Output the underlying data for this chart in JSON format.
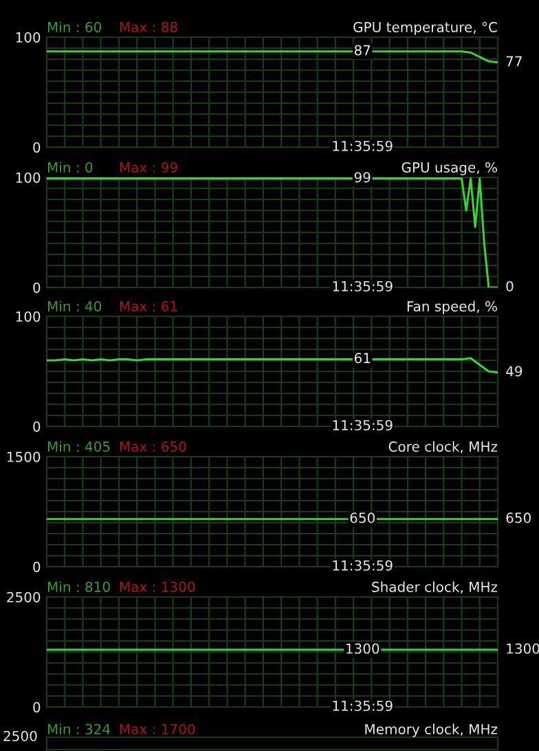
{
  "chart_data": [
    {
      "type": "line",
      "title": "GPU temperature, °C",
      "categories": [
        null,
        null,
        null,
        null,
        null,
        null,
        null,
        null,
        null,
        null,
        null,
        null,
        null,
        null,
        null,
        null,
        null,
        null,
        null,
        null,
        null,
        null,
        null,
        null,
        null,
        null,
        null,
        null,
        null,
        null,
        null,
        null,
        null,
        null,
        null,
        null,
        null,
        null,
        null,
        null,
        null,
        null,
        null,
        null,
        null,
        null,
        null,
        null,
        null,
        null,
        null
      ],
      "series": [
        {
          "color": "#3ad23a",
          "values": [
            87,
            87,
            87,
            87,
            87,
            87,
            87,
            87,
            87,
            87,
            87,
            87,
            87,
            87,
            87,
            87,
            87,
            87,
            87,
            87,
            87,
            87,
            87,
            87,
            87,
            87,
            87,
            87,
            87,
            87,
            87,
            87,
            87,
            87,
            87,
            87,
            87,
            87,
            87,
            87,
            87,
            87,
            87,
            87,
            87,
            87,
            87,
            86,
            82,
            78,
            77
          ]
        }
      ],
      "ylim": [
        0,
        100
      ],
      "yticks": [
        0,
        100
      ],
      "grid": true,
      "marker": "none",
      "line_style": "solid",
      "annotations": [
        "Min : 60",
        "Max : 88",
        "11:35:59",
        "77",
        {
          "text": "87",
          "y": 87
        }
      ]
    },
    {
      "type": "line",
      "title": "GPU usage, %",
      "categories": [
        null,
        null,
        null,
        null,
        null,
        null,
        null,
        null,
        null,
        null,
        null,
        null,
        null,
        null,
        null,
        null,
        null,
        null,
        null,
        null,
        null,
        null,
        null,
        null,
        null,
        null,
        null,
        null,
        null,
        null,
        null,
        null,
        null,
        null,
        null,
        null,
        null,
        null,
        null,
        null,
        null,
        null,
        null,
        null,
        null,
        null,
        null,
        null,
        null,
        null,
        null,
        null,
        null,
        null,
        null,
        null,
        null,
        null,
        null,
        null,
        null,
        null,
        null,
        null,
        null,
        null,
        null,
        null,
        null,
        null,
        null,
        null,
        null,
        null,
        null,
        null,
        null,
        null,
        null,
        null,
        null,
        null,
        null,
        null,
        null,
        null,
        null,
        null,
        null,
        null,
        null,
        null,
        null,
        null,
        null,
        null,
        null,
        null,
        null,
        null,
        null
      ],
      "series": [
        {
          "color": "#3ad23a",
          "values": [
            99,
            99,
            99,
            99,
            99,
            99,
            99,
            99,
            99,
            99,
            99,
            99,
            99,
            99,
            99,
            99,
            99,
            99,
            99,
            99,
            99,
            99,
            99,
            99,
            99,
            99,
            99,
            99,
            99,
            99,
            99,
            99,
            99,
            99,
            99,
            99,
            99,
            99,
            99,
            99,
            99,
            99,
            99,
            99,
            99,
            99,
            99,
            99,
            99,
            99,
            99,
            99,
            99,
            99,
            99,
            99,
            99,
            99,
            99,
            99,
            99,
            99,
            99,
            99,
            99,
            99,
            99,
            99,
            99,
            99,
            99,
            99,
            99,
            99,
            99,
            99,
            99,
            99,
            99,
            99,
            99,
            99,
            99,
            99,
            99,
            99,
            99,
            99,
            99,
            99,
            99,
            99,
            99,
            70,
            99,
            55,
            99,
            40,
            0,
            0,
            0
          ]
        }
      ],
      "ylim": [
        0,
        100
      ],
      "yticks": [
        0,
        100
      ],
      "grid": true,
      "marker": "none",
      "line_style": "solid",
      "annotations": [
        "Min : 0",
        "Max : 99",
        "11:35:59",
        "0",
        {
          "text": "99",
          "y": 99
        }
      ]
    },
    {
      "type": "line",
      "title": "Fan speed, %",
      "categories": [
        null,
        null,
        null,
        null,
        null,
        null,
        null,
        null,
        null,
        null,
        null,
        null,
        null,
        null,
        null,
        null,
        null,
        null,
        null,
        null,
        null,
        null,
        null,
        null,
        null,
        null,
        null,
        null,
        null,
        null,
        null,
        null,
        null,
        null,
        null,
        null,
        null,
        null,
        null,
        null,
        null,
        null,
        null,
        null,
        null,
        null,
        null,
        null,
        null,
        null,
        null
      ],
      "series": [
        {
          "color": "#3ad23a",
          "values": [
            60,
            60,
            61,
            60,
            61,
            60,
            61,
            60,
            61,
            61,
            60,
            61,
            61,
            61,
            61,
            61,
            61,
            61,
            61,
            61,
            61,
            61,
            61,
            61,
            61,
            61,
            61,
            61,
            61,
            61,
            61,
            61,
            61,
            61,
            61,
            61,
            61,
            61,
            61,
            61,
            61,
            61,
            61,
            61,
            61,
            61,
            61,
            62,
            56,
            50,
            49
          ]
        }
      ],
      "ylim": [
        0,
        100
      ],
      "yticks": [
        0,
        100
      ],
      "grid": true,
      "marker": "none",
      "line_style": "solid",
      "annotations": [
        "Min : 40",
        "Max : 61",
        "11:35:59",
        "49",
        {
          "text": "61",
          "y": 61
        }
      ]
    },
    {
      "type": "line",
      "title": "Core clock, MHz",
      "categories": [
        null,
        null,
        null,
        null,
        null,
        null,
        null,
        null,
        null,
        null,
        null,
        null,
        null,
        null,
        null,
        null,
        null,
        null,
        null,
        null,
        null
      ],
      "series": [
        {
          "color": "#3ad23a",
          "values": [
            650,
            650,
            650,
            650,
            650,
            650,
            650,
            650,
            650,
            650,
            650,
            650,
            650,
            650,
            650,
            650,
            650,
            650,
            650,
            650,
            650
          ]
        }
      ],
      "ylim": [
        0,
        1500
      ],
      "yticks": [
        0,
        1500
      ],
      "grid": true,
      "line_style": "solid",
      "annotations": [
        "Min : 405",
        "Max : 650",
        "11:35:59",
        "650",
        "650"
      ]
    },
    {
      "type": "line",
      "title": "Shader clock, MHz",
      "categories": [
        null,
        null,
        null,
        null,
        null,
        null,
        null,
        null,
        null,
        null,
        null,
        null,
        null,
        null,
        null,
        null,
        null,
        null,
        null,
        null,
        null
      ],
      "series": [
        {
          "color": "#3ad23a",
          "values": [
            1300,
            1300,
            1300,
            1300,
            1300,
            1300,
            1300,
            1300,
            1300,
            1300,
            1300,
            1300,
            1300,
            1300,
            1300,
            1300,
            1300,
            1300,
            1300,
            1300,
            1300
          ]
        }
      ],
      "ylim": [
        0,
        2500
      ],
      "yticks": [
        0,
        2500
      ],
      "grid": true,
      "line_style": "solid",
      "annotations": [
        "Min : 810",
        "Max : 1300",
        "11:35:59",
        "1300",
        "1300"
      ]
    },
    {
      "type": "other",
      "title": "Memory clock, MHz",
      "annotations": [
        "Min : 324",
        "Max : 1700",
        "2500"
      ]
    }
  ]
}
